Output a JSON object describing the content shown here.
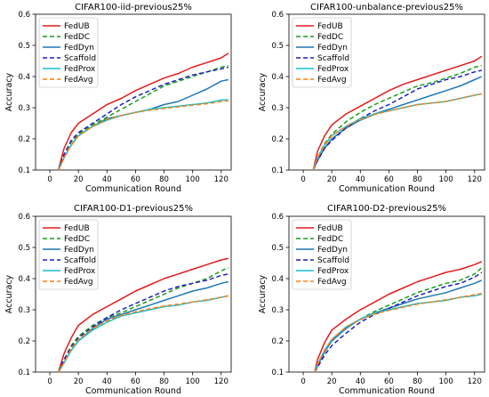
{
  "chart_data": [
    {
      "type": "line",
      "title": "CIFAR100-iid-previous25%",
      "xlabel": "Communication Round",
      "ylabel": "Accuracy",
      "xlim": [
        -10,
        127
      ],
      "ylim": [
        0.1,
        0.6
      ],
      "xticks": [
        0,
        20,
        40,
        60,
        80,
        100,
        120
      ],
      "yticks": [
        0.1,
        0.2,
        0.3,
        0.4,
        0.5,
        0.6
      ],
      "grid": false,
      "legend_position": "top-left",
      "x": [
        6,
        10,
        15,
        20,
        30,
        40,
        50,
        60,
        70,
        80,
        90,
        100,
        110,
        120,
        125
      ],
      "series": [
        {
          "name": "FedUB",
          "color": "#e41a1c",
          "dash": "solid",
          "values": [
            0.1,
            0.17,
            0.22,
            0.25,
            0.28,
            0.31,
            0.33,
            0.355,
            0.375,
            0.395,
            0.41,
            0.43,
            0.445,
            0.46,
            0.475
          ]
        },
        {
          "name": "FedDC",
          "color": "#1a9c1a",
          "dash": "dashed",
          "values": [
            0.1,
            0.15,
            0.19,
            0.215,
            0.245,
            0.27,
            0.295,
            0.32,
            0.345,
            0.37,
            0.385,
            0.4,
            0.415,
            0.43,
            0.435
          ]
        },
        {
          "name": "FedDyn",
          "color": "#1f77b4",
          "dash": "solid",
          "values": [
            0.1,
            0.14,
            0.18,
            0.21,
            0.24,
            0.265,
            0.275,
            0.285,
            0.295,
            0.31,
            0.32,
            0.34,
            0.36,
            0.385,
            0.39
          ]
        },
        {
          "name": "Scaffold",
          "color": "#1f1fbf",
          "dash": "dashed",
          "values": [
            0.1,
            0.15,
            0.195,
            0.22,
            0.25,
            0.28,
            0.31,
            0.335,
            0.355,
            0.375,
            0.39,
            0.405,
            0.415,
            0.425,
            0.43
          ]
        },
        {
          "name": "FedProx",
          "color": "#17becf",
          "dash": "solid",
          "values": [
            0.1,
            0.14,
            0.18,
            0.21,
            0.24,
            0.26,
            0.275,
            0.285,
            0.295,
            0.3,
            0.305,
            0.31,
            0.315,
            0.325,
            0.325
          ]
        },
        {
          "name": "FedAvg",
          "color": "#ff7f0e",
          "dash": "dashed",
          "values": [
            0.1,
            0.14,
            0.18,
            0.21,
            0.24,
            0.262,
            0.275,
            0.285,
            0.292,
            0.298,
            0.303,
            0.308,
            0.313,
            0.32,
            0.323
          ]
        }
      ]
    },
    {
      "type": "line",
      "title": "CIFAR100-unbalance-previous25%",
      "xlabel": "Communication Round",
      "ylabel": "Accuracy",
      "xlim": [
        -10,
        127
      ],
      "ylim": [
        0.1,
        0.6
      ],
      "xticks": [
        0,
        20,
        40,
        60,
        80,
        100,
        120
      ],
      "yticks": [
        0.1,
        0.2,
        0.3,
        0.4,
        0.5,
        0.6
      ],
      "grid": false,
      "legend_position": "top-left",
      "x": [
        7,
        10,
        15,
        20,
        30,
        40,
        50,
        60,
        70,
        80,
        90,
        100,
        110,
        120,
        125
      ],
      "series": [
        {
          "name": "FedUB",
          "color": "#e41a1c",
          "dash": "solid",
          "values": [
            0.1,
            0.16,
            0.21,
            0.245,
            0.28,
            0.305,
            0.33,
            0.355,
            0.375,
            0.39,
            0.405,
            0.42,
            0.435,
            0.45,
            0.465
          ]
        },
        {
          "name": "FedDC",
          "color": "#1a9c1a",
          "dash": "dashed",
          "values": [
            0.1,
            0.14,
            0.185,
            0.215,
            0.255,
            0.285,
            0.31,
            0.33,
            0.35,
            0.37,
            0.38,
            0.395,
            0.41,
            0.43,
            0.435
          ]
        },
        {
          "name": "FedDyn",
          "color": "#1f77b4",
          "dash": "solid",
          "values": [
            0.1,
            0.13,
            0.17,
            0.2,
            0.235,
            0.26,
            0.28,
            0.295,
            0.31,
            0.325,
            0.34,
            0.355,
            0.37,
            0.39,
            0.4
          ]
        },
        {
          "name": "Scaffold",
          "color": "#1f1fbf",
          "dash": "dashed",
          "values": [
            0.1,
            0.13,
            0.17,
            0.195,
            0.235,
            0.265,
            0.29,
            0.31,
            0.335,
            0.36,
            0.375,
            0.39,
            0.4,
            0.415,
            0.42
          ]
        },
        {
          "name": "FedProx",
          "color": "#17becf",
          "dash": "solid",
          "values": [
            0.1,
            0.14,
            0.18,
            0.21,
            0.24,
            0.265,
            0.28,
            0.29,
            0.3,
            0.31,
            0.315,
            0.32,
            0.33,
            0.34,
            0.345
          ]
        },
        {
          "name": "FedAvg",
          "color": "#ff7f0e",
          "dash": "dashed",
          "values": [
            0.1,
            0.14,
            0.18,
            0.21,
            0.24,
            0.262,
            0.278,
            0.29,
            0.3,
            0.31,
            0.315,
            0.32,
            0.33,
            0.34,
            0.345
          ]
        }
      ]
    },
    {
      "type": "line",
      "title": "CIFAR100-D1-previous25%",
      "xlabel": "Communication Round",
      "ylabel": "Accuracy",
      "xlim": [
        -10,
        127
      ],
      "ylim": [
        0.1,
        0.6
      ],
      "xticks": [
        0,
        20,
        40,
        60,
        80,
        100,
        120
      ],
      "yticks": [
        0.1,
        0.2,
        0.3,
        0.4,
        0.5,
        0.6
      ],
      "grid": false,
      "legend_position": "top-left",
      "x": [
        6,
        10,
        15,
        20,
        30,
        40,
        50,
        60,
        70,
        80,
        90,
        100,
        110,
        120,
        125
      ],
      "series": [
        {
          "name": "FedUB",
          "color": "#e41a1c",
          "dash": "solid",
          "values": [
            0.1,
            0.16,
            0.21,
            0.25,
            0.285,
            0.31,
            0.335,
            0.36,
            0.38,
            0.4,
            0.415,
            0.43,
            0.445,
            0.46,
            0.465
          ]
        },
        {
          "name": "FedDC",
          "color": "#1a9c1a",
          "dash": "dashed",
          "values": [
            0.1,
            0.14,
            0.185,
            0.215,
            0.25,
            0.275,
            0.29,
            0.31,
            0.33,
            0.35,
            0.37,
            0.385,
            0.4,
            0.425,
            0.435
          ]
        },
        {
          "name": "FedDyn",
          "color": "#1f77b4",
          "dash": "solid",
          "values": [
            0.1,
            0.13,
            0.17,
            0.2,
            0.24,
            0.27,
            0.285,
            0.3,
            0.315,
            0.33,
            0.345,
            0.36,
            0.37,
            0.385,
            0.39
          ]
        },
        {
          "name": "Scaffold",
          "color": "#1f1fbf",
          "dash": "dashed",
          "values": [
            0.1,
            0.14,
            0.18,
            0.21,
            0.245,
            0.275,
            0.3,
            0.32,
            0.34,
            0.36,
            0.375,
            0.385,
            0.395,
            0.41,
            0.415
          ]
        },
        {
          "name": "FedProx",
          "color": "#17becf",
          "dash": "solid",
          "values": [
            0.1,
            0.13,
            0.17,
            0.2,
            0.235,
            0.26,
            0.28,
            0.29,
            0.3,
            0.31,
            0.315,
            0.325,
            0.33,
            0.34,
            0.345
          ]
        },
        {
          "name": "FedAvg",
          "color": "#ff7f0e",
          "dash": "dashed",
          "values": [
            0.1,
            0.13,
            0.175,
            0.205,
            0.24,
            0.265,
            0.282,
            0.293,
            0.303,
            0.312,
            0.318,
            0.325,
            0.332,
            0.34,
            0.345
          ]
        }
      ]
    },
    {
      "type": "line",
      "title": "CIFAR100-D2-previous25%",
      "xlabel": "Communication Round",
      "ylabel": "Accuracy",
      "xlim": [
        -10,
        127
      ],
      "ylim": [
        0.1,
        0.6
      ],
      "xticks": [
        0,
        20,
        40,
        60,
        80,
        100,
        120
      ],
      "yticks": [
        0.1,
        0.2,
        0.3,
        0.4,
        0.5,
        0.6
      ],
      "grid": false,
      "legend_position": "top-left",
      "x": [
        8,
        10,
        15,
        20,
        30,
        40,
        50,
        60,
        70,
        80,
        90,
        100,
        110,
        120,
        125
      ],
      "series": [
        {
          "name": "FedUB",
          "color": "#e41a1c",
          "dash": "solid",
          "values": [
            0.1,
            0.14,
            0.195,
            0.235,
            0.27,
            0.3,
            0.325,
            0.35,
            0.37,
            0.39,
            0.405,
            0.42,
            0.43,
            0.445,
            0.455
          ]
        },
        {
          "name": "FedDC",
          "color": "#1a9c1a",
          "dash": "dashed",
          "values": [
            0.1,
            0.12,
            0.165,
            0.2,
            0.24,
            0.27,
            0.295,
            0.315,
            0.335,
            0.355,
            0.37,
            0.385,
            0.395,
            0.415,
            0.435
          ]
        },
        {
          "name": "FedDyn",
          "color": "#1f77b4",
          "dash": "solid",
          "values": [
            0.1,
            0.12,
            0.165,
            0.2,
            0.24,
            0.27,
            0.29,
            0.305,
            0.32,
            0.335,
            0.345,
            0.355,
            0.37,
            0.385,
            0.395
          ]
        },
        {
          "name": "Scaffold",
          "color": "#1f1fbf",
          "dash": "dashed",
          "values": [
            0.1,
            0.115,
            0.155,
            0.185,
            0.225,
            0.26,
            0.285,
            0.305,
            0.325,
            0.345,
            0.36,
            0.375,
            0.385,
            0.405,
            0.42
          ]
        },
        {
          "name": "FedProx",
          "color": "#17becf",
          "dash": "solid",
          "values": [
            0.1,
            0.125,
            0.17,
            0.205,
            0.245,
            0.27,
            0.29,
            0.3,
            0.31,
            0.32,
            0.325,
            0.33,
            0.34,
            0.345,
            0.35
          ]
        },
        {
          "name": "FedAvg",
          "color": "#ff7f0e",
          "dash": "dashed",
          "values": [
            0.1,
            0.125,
            0.17,
            0.205,
            0.245,
            0.268,
            0.287,
            0.298,
            0.308,
            0.318,
            0.325,
            0.332,
            0.34,
            0.348,
            0.352
          ]
        }
      ]
    }
  ]
}
